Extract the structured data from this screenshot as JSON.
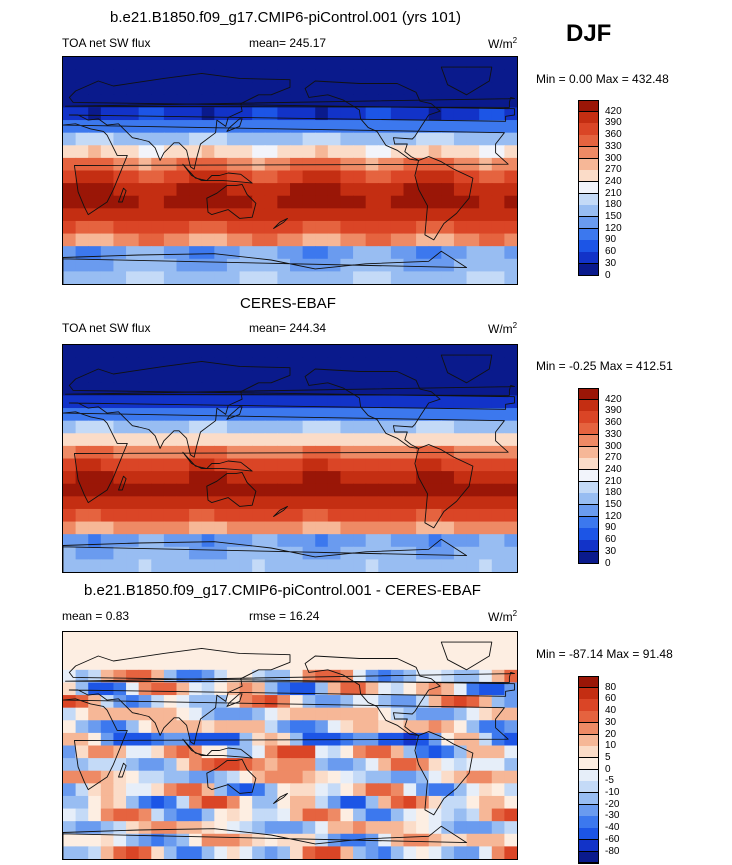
{
  "colors": {
    "abs": [
      "#0a1a8c",
      "#1233c8",
      "#1c55e6",
      "#3c78ee",
      "#6a9bef",
      "#98bdf2",
      "#c4daf7",
      "#f2f4fb",
      "#fbdcc8",
      "#f6b797",
      "#ee8a65",
      "#e5633f",
      "#da4526",
      "#c42e12",
      "#9a1607"
    ],
    "diff": [
      "#0a1a8c",
      "#1233c8",
      "#1c55e6",
      "#3c78ee",
      "#6a9bef",
      "#98bdf2",
      "#c4daf7",
      "#e6eef9",
      "#fdeee2",
      "#fbdcc8",
      "#f6b797",
      "#ee8a65",
      "#e5633f",
      "#da4526",
      "#c42e12",
      "#9a1607"
    ]
  },
  "season": "DJF",
  "panels": [
    {
      "title": "b.e21.B1850.f09_g17.CMIP6-piControl.001 (yrs 101)",
      "left_label": "TOA net SW flux",
      "center_label": "mean= 245.17",
      "units": "W/m",
      "units_sup": "2",
      "minmax": "Min =   0.00 Max = 432.48",
      "colorbar_type": "abs",
      "colorbar_ticks": [
        "420",
        "390",
        "360",
        "330",
        "300",
        "270",
        "240",
        "210",
        "180",
        "150",
        "120",
        "90",
        "60",
        "30",
        "0"
      ]
    },
    {
      "title": "CERES-EBAF",
      "left_label": "TOA net SW flux",
      "center_label": "mean= 244.34",
      "units": "W/m",
      "units_sup": "2",
      "minmax": "Min =  -0.25 Max = 412.51",
      "colorbar_type": "abs",
      "colorbar_ticks": [
        "420",
        "390",
        "360",
        "330",
        "300",
        "270",
        "240",
        "210",
        "180",
        "150",
        "120",
        "90",
        "60",
        "30",
        "0"
      ]
    },
    {
      "title": "b.e21.B1850.f09_g17.CMIP6-piControl.001 - CERES-EBAF",
      "left_label": "mean =   0.83",
      "center_label": "rmse =  16.24",
      "units": "W/m",
      "units_sup": "2",
      "minmax": "Min = -87.14 Max =  91.48",
      "colorbar_type": "diff",
      "colorbar_ticks": [
        "80",
        "60",
        "40",
        "30",
        "20",
        "10",
        "5",
        "0",
        "-5",
        "-10",
        "-20",
        "-30",
        "-40",
        "-60",
        "-80"
      ]
    }
  ]
}
